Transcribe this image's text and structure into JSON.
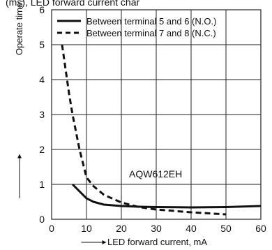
{
  "header_fragment": "(ms), LED forward current char",
  "chart_data": {
    "type": "line",
    "xlabel": "LED forward current, mA",
    "ylabel": "Operate time, ms",
    "xlim": [
      0,
      60
    ],
    "ylim": [
      0,
      6
    ],
    "x_ticks": [
      "0",
      "10",
      "20",
      "30",
      "40",
      "50",
      "60"
    ],
    "y_ticks": [
      "0",
      "1",
      "2",
      "3",
      "4",
      "5",
      "6"
    ],
    "grid": true,
    "legend_position": "top",
    "annotation": "AQW612EH",
    "series": [
      {
        "name": "Between terminal 5 and 6 (N.O.)",
        "style": "solid",
        "x": [
          6,
          8,
          10,
          12,
          15,
          20,
          25,
          30,
          40,
          50,
          60
        ],
        "y": [
          1.0,
          0.8,
          0.6,
          0.5,
          0.42,
          0.38,
          0.36,
          0.35,
          0.34,
          0.35,
          0.38
        ]
      },
      {
        "name": "Between terminal 7 and 8 (N.C.)",
        "style": "dashed",
        "x": [
          3,
          4,
          5,
          6,
          7,
          8,
          9,
          10,
          12,
          15,
          20,
          25,
          30,
          40,
          50
        ],
        "y": [
          5.0,
          4.3,
          3.6,
          3.0,
          2.5,
          2.0,
          1.6,
          1.2,
          0.95,
          0.7,
          0.48,
          0.35,
          0.28,
          0.2,
          0.14
        ]
      }
    ]
  },
  "colors": {
    "line": "#111111",
    "grid": "#222222",
    "background": "#ffffff"
  }
}
